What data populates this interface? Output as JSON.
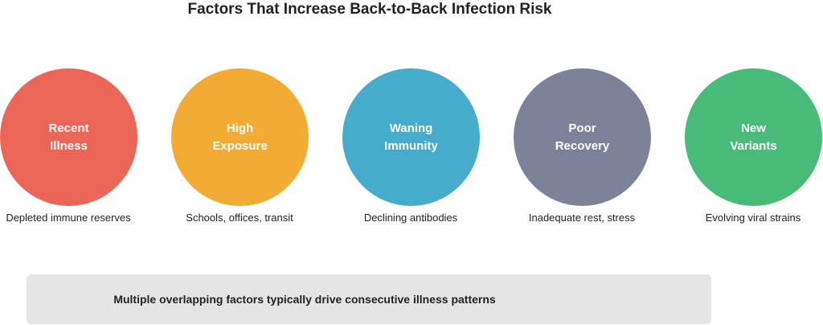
{
  "title": "Factors That Increase Back-to-Back Infection Risk",
  "factors": [
    {
      "label": "Recent\nIllness",
      "description": "Depleted immune reserves",
      "color": "#EB6657"
    },
    {
      "label": "High\nExposure",
      "description": "Schools, offices, transit",
      "color": "#F3AB34"
    },
    {
      "label": "Waning\nImmunity",
      "description": "Declining antibodies",
      "color": "#47ABCB"
    },
    {
      "label": "Poor\nRecovery",
      "description": "Inadequate rest, stress",
      "color": "#7E8299"
    },
    {
      "label": "New\nVariants",
      "description": "Evolving viral strains",
      "color": "#47BB77"
    }
  ],
  "summary": "Multiple overlapping factors typically drive consecutive illness patterns"
}
